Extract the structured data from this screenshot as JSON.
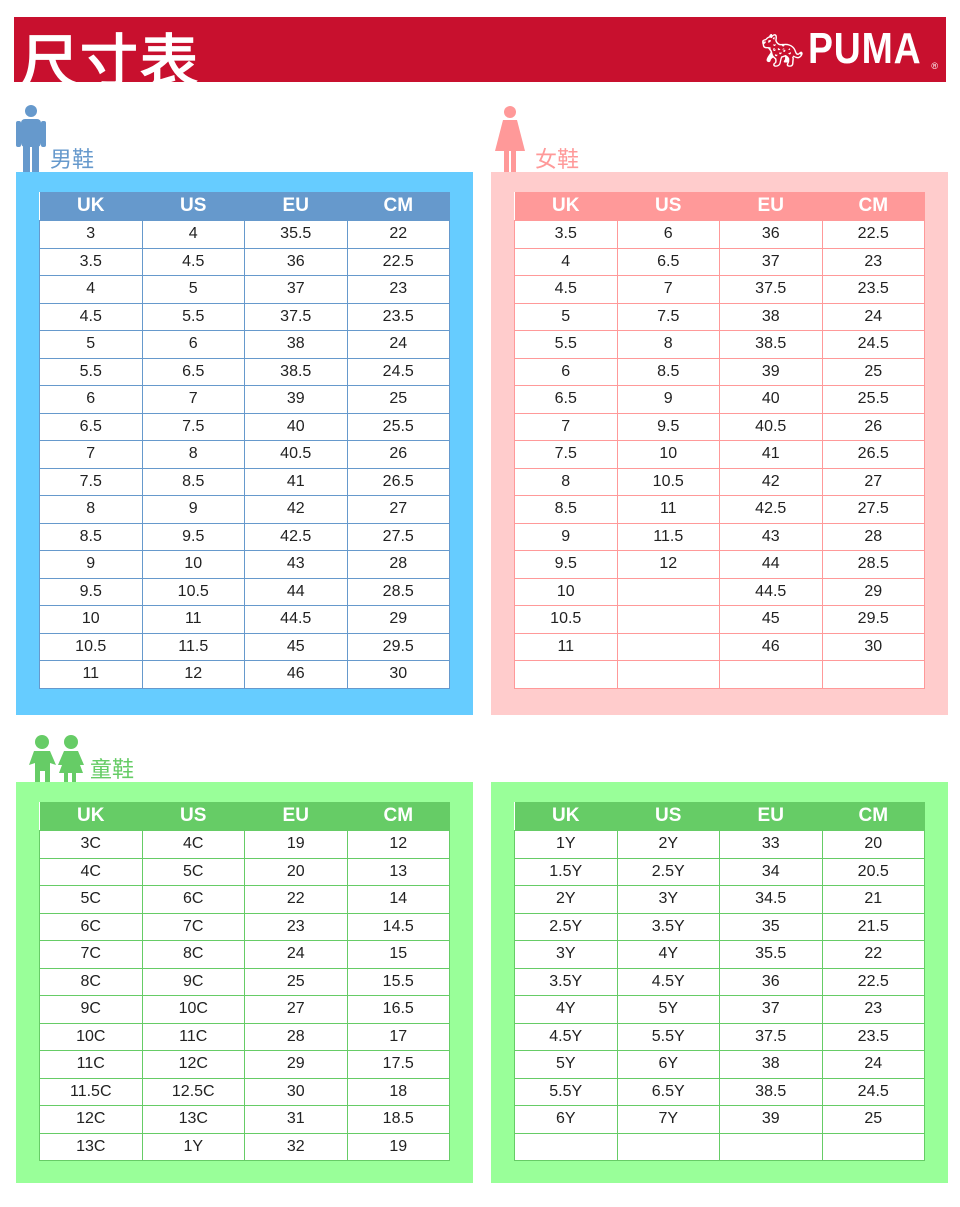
{
  "header": {
    "title": "尺寸表",
    "brand": "PUMA",
    "brand_color": "#c8102e"
  },
  "columns": [
    "UK",
    "US",
    "EU",
    "CM"
  ],
  "men": {
    "label": "男鞋",
    "color": "#6699cc",
    "rows": [
      [
        "3",
        "4",
        "35.5",
        "22"
      ],
      [
        "3.5",
        "4.5",
        "36",
        "22.5"
      ],
      [
        "4",
        "5",
        "37",
        "23"
      ],
      [
        "4.5",
        "5.5",
        "37.5",
        "23.5"
      ],
      [
        "5",
        "6",
        "38",
        "24"
      ],
      [
        "5.5",
        "6.5",
        "38.5",
        "24.5"
      ],
      [
        "6",
        "7",
        "39",
        "25"
      ],
      [
        "6.5",
        "7.5",
        "40",
        "25.5"
      ],
      [
        "7",
        "8",
        "40.5",
        "26"
      ],
      [
        "7.5",
        "8.5",
        "41",
        "26.5"
      ],
      [
        "8",
        "9",
        "42",
        "27"
      ],
      [
        "8.5",
        "9.5",
        "42.5",
        "27.5"
      ],
      [
        "9",
        "10",
        "43",
        "28"
      ],
      [
        "9.5",
        "10.5",
        "44",
        "28.5"
      ],
      [
        "10",
        "11",
        "44.5",
        "29"
      ],
      [
        "10.5",
        "11.5",
        "45",
        "29.5"
      ],
      [
        "11",
        "12",
        "46",
        "30"
      ]
    ]
  },
  "women": {
    "label": "女鞋",
    "color": "#ff9999",
    "rows": [
      [
        "3.5",
        "6",
        "36",
        "22.5"
      ],
      [
        "4",
        "6.5",
        "37",
        "23"
      ],
      [
        "4.5",
        "7",
        "37.5",
        "23.5"
      ],
      [
        "5",
        "7.5",
        "38",
        "24"
      ],
      [
        "5.5",
        "8",
        "38.5",
        "24.5"
      ],
      [
        "6",
        "8.5",
        "39",
        "25"
      ],
      [
        "6.5",
        "9",
        "40",
        "25.5"
      ],
      [
        "7",
        "9.5",
        "40.5",
        "26"
      ],
      [
        "7.5",
        "10",
        "41",
        "26.5"
      ],
      [
        "8",
        "10.5",
        "42",
        "27"
      ],
      [
        "8.5",
        "11",
        "42.5",
        "27.5"
      ],
      [
        "9",
        "11.5",
        "43",
        "28"
      ],
      [
        "9.5",
        "12",
        "44",
        "28.5"
      ],
      [
        "10",
        "",
        "44.5",
        "29"
      ],
      [
        "10.5",
        "",
        "45",
        "29.5"
      ],
      [
        "11",
        "",
        "46",
        "30"
      ],
      [
        "",
        "",
        "",
        ""
      ]
    ]
  },
  "kids": {
    "label": "童鞋",
    "color": "#66cc66",
    "rows": [
      [
        "3C",
        "4C",
        "19",
        "12"
      ],
      [
        "4C",
        "5C",
        "20",
        "13"
      ],
      [
        "5C",
        "6C",
        "22",
        "14"
      ],
      [
        "6C",
        "7C",
        "23",
        "14.5"
      ],
      [
        "7C",
        "8C",
        "24",
        "15"
      ],
      [
        "8C",
        "9C",
        "25",
        "15.5"
      ],
      [
        "9C",
        "10C",
        "27",
        "16.5"
      ],
      [
        "10C",
        "11C",
        "28",
        "17"
      ],
      [
        "11C",
        "12C",
        "29",
        "17.5"
      ],
      [
        "11.5C",
        "12.5C",
        "30",
        "18"
      ],
      [
        "12C",
        "13C",
        "31",
        "18.5"
      ],
      [
        "13C",
        "1Y",
        "32",
        "19"
      ]
    ]
  },
  "youth": {
    "rows": [
      [
        "1Y",
        "2Y",
        "33",
        "20"
      ],
      [
        "1.5Y",
        "2.5Y",
        "34",
        "20.5"
      ],
      [
        "2Y",
        "3Y",
        "34.5",
        "21"
      ],
      [
        "2.5Y",
        "3.5Y",
        "35",
        "21.5"
      ],
      [
        "3Y",
        "4Y",
        "35.5",
        "22"
      ],
      [
        "3.5Y",
        "4.5Y",
        "36",
        "22.5"
      ],
      [
        "4Y",
        "5Y",
        "37",
        "23"
      ],
      [
        "4.5Y",
        "5.5Y",
        "37.5",
        "23.5"
      ],
      [
        "5Y",
        "6Y",
        "38",
        "24"
      ],
      [
        "5.5Y",
        "6.5Y",
        "38.5",
        "24.5"
      ],
      [
        "6Y",
        "7Y",
        "39",
        "25"
      ],
      [
        "",
        "",
        "",
        ""
      ]
    ]
  }
}
